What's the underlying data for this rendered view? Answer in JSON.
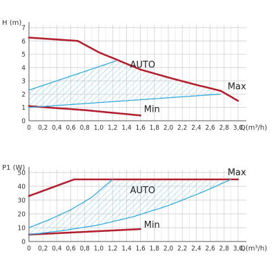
{
  "chart_data": [
    {
      "type": "line",
      "ylabel": "H (m)",
      "xlabel": "Q(m³/h)",
      "xlim": [
        0,
        3.0
      ],
      "ylim": [
        0,
        7
      ],
      "x_ticks": [
        "0",
        "0,2",
        "0,4",
        "0,6",
        "0,8",
        "1,0",
        "1,2",
        "1,4",
        "1,6",
        "1,8",
        "2,0",
        "2,2",
        "2,4",
        "2,6",
        "2,8",
        "3,0"
      ],
      "y_ticks": [
        "0",
        "1",
        "2",
        "3",
        "4",
        "5",
        "6",
        "7"
      ],
      "grid": true,
      "series": [
        {
          "name": "Max",
          "x": [
            0,
            0.7,
            1.0,
            1.3,
            1.6,
            2.0,
            2.4,
            2.75,
            3.0
          ],
          "y": [
            6.25,
            6.0,
            5.15,
            4.5,
            3.85,
            3.25,
            2.7,
            2.25,
            1.5
          ]
        },
        {
          "name": "Min",
          "x": [
            0,
            0.4,
            0.8,
            1.2,
            1.6
          ],
          "y": [
            1.1,
            0.95,
            0.8,
            0.6,
            0.4
          ]
        },
        {
          "name": "",
          "x": [
            0,
            1.25
          ],
          "y": [
            2.3,
            4.5
          ]
        },
        {
          "name": "",
          "x": [
            0,
            2.75
          ],
          "y": [
            1.0,
            2.0
          ]
        }
      ],
      "annotations": [
        "AUTO",
        "Max",
        "Min"
      ],
      "colors": {
        "max_min": "#b22030",
        "auto": "#33aadd",
        "grid": "#c8c8c8"
      }
    },
    {
      "type": "line",
      "ylabel": "P1 (W)",
      "xlabel": "Q(m³/h)",
      "xlim": [
        0,
        3.0
      ],
      "ylim": [
        0,
        50
      ],
      "x_ticks": [
        "0",
        "0,2",
        "0,4",
        "0,6",
        "0,8",
        "1,0",
        "1,2",
        "1,4",
        "1,6",
        "1,8",
        "2,0",
        "2,2",
        "2,4",
        "2,6",
        "2,8",
        "3,0"
      ],
      "y_ticks": [
        "0",
        "10",
        "20",
        "30",
        "40",
        "50"
      ],
      "grid": true,
      "series": [
        {
          "name": "Max",
          "x": [
            0,
            0.65,
            3.0
          ],
          "y": [
            33,
            45,
            45
          ]
        },
        {
          "name": "Min",
          "x": [
            0,
            0.6,
            1.0,
            1.6
          ],
          "y": [
            5,
            6.5,
            7.5,
            9
          ]
        },
        {
          "name": "",
          "x": [
            0,
            0.3,
            0.6,
            0.9,
            1.2
          ],
          "y": [
            10,
            16,
            23,
            32,
            45
          ]
        },
        {
          "name": "",
          "x": [
            0,
            0.5,
            1.0,
            1.5,
            2.0,
            2.5,
            2.9
          ],
          "y": [
            5,
            8,
            12,
            18,
            26,
            36,
            45
          ]
        }
      ],
      "annotations": [
        "AUTO",
        "Max",
        "Min"
      ],
      "colors": {
        "max_min": "#b22030",
        "auto": "#33aadd",
        "grid": "#c8c8c8"
      }
    }
  ]
}
